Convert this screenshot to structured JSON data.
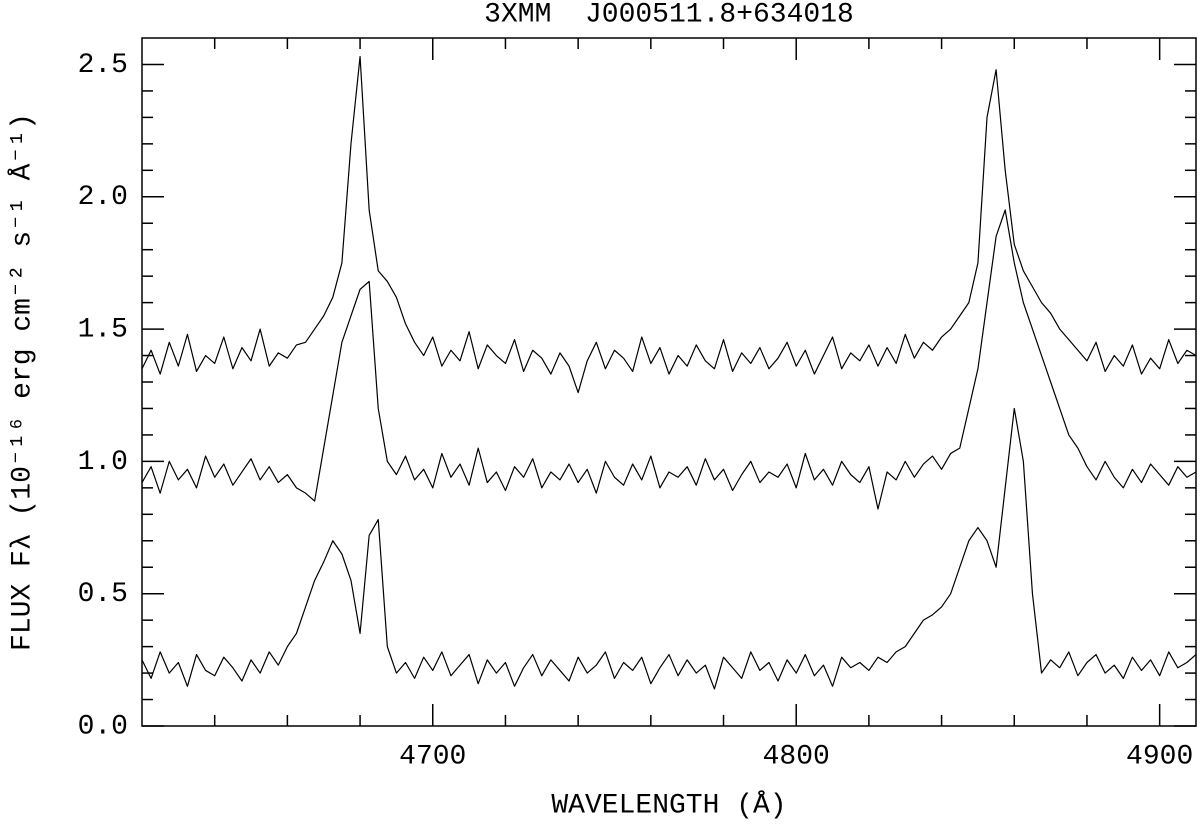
{
  "chart_data": {
    "type": "line",
    "title": "3XMM  J000511.8+634018",
    "xlabel": "WAVELENGTH (Å)",
    "ylabel": "FLUX Fλ (10⁻¹⁶ erg cm⁻² s⁻¹ Å⁻¹)",
    "xlim": [
      4620,
      4910
    ],
    "ylim": [
      0,
      2.6
    ],
    "xticks": [
      4700,
      4800,
      4900
    ],
    "yticks": [
      {
        "value": 0,
        "label": "0.0"
      },
      0.5,
      {
        "value": 1,
        "label": "1.0"
      },
      1.5,
      {
        "value": 2,
        "label": "2.0"
      },
      2.5
    ],
    "xminorticks": [
      4640,
      4660,
      4680,
      4720,
      4740,
      4760,
      4780,
      4820,
      4840,
      4860,
      4880
    ],
    "yminorticks": [
      0.1,
      0.2,
      0.3,
      0.4,
      0.6,
      0.7,
      0.8,
      0.9,
      1.1,
      1.2,
      1.3,
      1.4,
      1.6,
      1.7,
      1.8,
      1.9,
      2.1,
      2.2,
      2.3,
      2.4
    ],
    "x": [
      4620,
      4622.5,
      4625,
      4627.5,
      4630,
      4632.5,
      4635,
      4637.5,
      4640,
      4642.5,
      4645,
      4647.5,
      4650,
      4652.5,
      4655,
      4657.5,
      4660,
      4662.5,
      4665,
      4667.5,
      4670,
      4672.5,
      4675,
      4677.5,
      4680,
      4682.5,
      4685,
      4687.5,
      4690,
      4692.5,
      4695,
      4697.5,
      4700,
      4702.5,
      4705,
      4707.5,
      4710,
      4712.5,
      4715,
      4717.5,
      4720,
      4722.5,
      4725,
      4727.5,
      4730,
      4732.5,
      4735,
      4737.5,
      4740,
      4742.5,
      4745,
      4747.5,
      4750,
      4752.5,
      4755,
      4757.5,
      4760,
      4762.5,
      4765,
      4767.5,
      4770,
      4772.5,
      4775,
      4777.5,
      4780,
      4782.5,
      4785,
      4787.5,
      4790,
      4792.5,
      4795,
      4797.5,
      4800,
      4802.5,
      4805,
      4807.5,
      4810,
      4812.5,
      4815,
      4817.5,
      4820,
      4822.5,
      4825,
      4827.5,
      4830,
      4832.5,
      4835,
      4837.5,
      4840,
      4842.5,
      4845,
      4847.5,
      4850,
      4852.5,
      4855,
      4857.5,
      4860,
      4862.5,
      4865,
      4867.5,
      4870,
      4872.5,
      4875,
      4877.5,
      4880,
      4882.5,
      4885,
      4887.5,
      4890,
      4892.5,
      4895,
      4897.5,
      4900,
      4902.5,
      4905,
      4907.5,
      4910
    ],
    "series": [
      {
        "color": "#000000",
        "values": [
          1.35,
          1.42,
          1.33,
          1.45,
          1.36,
          1.48,
          1.34,
          1.4,
          1.37,
          1.47,
          1.35,
          1.43,
          1.38,
          1.5,
          1.36,
          1.41,
          1.39,
          1.44,
          1.45,
          1.5,
          1.55,
          1.62,
          1.75,
          2.2,
          2.53,
          1.95,
          1.72,
          1.68,
          1.62,
          1.52,
          1.45,
          1.4,
          1.47,
          1.36,
          1.42,
          1.38,
          1.49,
          1.35,
          1.44,
          1.4,
          1.37,
          1.46,
          1.34,
          1.42,
          1.39,
          1.33,
          1.41,
          1.36,
          1.26,
          1.38,
          1.45,
          1.35,
          1.42,
          1.39,
          1.34,
          1.47,
          1.37,
          1.43,
          1.33,
          1.4,
          1.36,
          1.44,
          1.38,
          1.35,
          1.46,
          1.34,
          1.41,
          1.37,
          1.43,
          1.35,
          1.39,
          1.45,
          1.36,
          1.42,
          1.33,
          1.4,
          1.47,
          1.35,
          1.41,
          1.38,
          1.44,
          1.36,
          1.43,
          1.37,
          1.48,
          1.39,
          1.45,
          1.42,
          1.47,
          1.5,
          1.55,
          1.6,
          1.75,
          2.3,
          2.48,
          2.1,
          1.82,
          1.72,
          1.66,
          1.6,
          1.56,
          1.5,
          1.46,
          1.42,
          1.38,
          1.45,
          1.34,
          1.4,
          1.36,
          1.44,
          1.33,
          1.39,
          1.35,
          1.46,
          1.37,
          1.42,
          1.4
        ]
      },
      {
        "color": "#000000",
        "values": [
          0.92,
          0.98,
          0.88,
          1.0,
          0.93,
          0.97,
          0.9,
          1.02,
          0.94,
          0.99,
          0.91,
          0.96,
          1.01,
          0.93,
          0.98,
          0.92,
          0.95,
          0.9,
          0.88,
          0.85,
          1.05,
          1.25,
          1.45,
          1.55,
          1.65,
          1.68,
          1.2,
          1.0,
          0.95,
          1.02,
          0.93,
          0.97,
          0.9,
          1.03,
          0.94,
          0.99,
          0.91,
          1.05,
          0.92,
          0.96,
          0.89,
          0.98,
          0.94,
          1.01,
          0.9,
          0.96,
          0.93,
          0.99,
          0.92,
          0.97,
          0.88,
          1.0,
          0.94,
          0.91,
          0.99,
          0.93,
          1.02,
          0.9,
          0.96,
          0.94,
          0.98,
          0.91,
          1.01,
          0.93,
          0.97,
          0.89,
          0.95,
          1.0,
          0.92,
          0.96,
          0.94,
          0.99,
          0.9,
          1.03,
          0.93,
          0.97,
          0.91,
          1.0,
          0.95,
          0.92,
          0.98,
          0.82,
          0.96,
          0.93,
          1.0,
          0.94,
          0.99,
          1.02,
          0.97,
          1.03,
          1.05,
          1.2,
          1.35,
          1.6,
          1.85,
          1.95,
          1.75,
          1.6,
          1.5,
          1.4,
          1.3,
          1.2,
          1.1,
          1.05,
          0.98,
          0.93,
          1.0,
          0.94,
          0.9,
          0.97,
          0.92,
          0.99,
          0.95,
          0.91,
          0.98,
          0.94,
          0.96
        ]
      },
      {
        "color": "#000000",
        "values": [
          0.25,
          0.18,
          0.28,
          0.2,
          0.24,
          0.15,
          0.27,
          0.21,
          0.19,
          0.26,
          0.22,
          0.17,
          0.25,
          0.2,
          0.28,
          0.23,
          0.3,
          0.35,
          0.45,
          0.55,
          0.62,
          0.7,
          0.65,
          0.55,
          0.35,
          0.72,
          0.78,
          0.3,
          0.2,
          0.24,
          0.18,
          0.26,
          0.21,
          0.28,
          0.19,
          0.23,
          0.27,
          0.16,
          0.25,
          0.2,
          0.24,
          0.15,
          0.22,
          0.27,
          0.19,
          0.25,
          0.21,
          0.17,
          0.26,
          0.2,
          0.23,
          0.28,
          0.18,
          0.24,
          0.21,
          0.26,
          0.16,
          0.22,
          0.27,
          0.19,
          0.25,
          0.2,
          0.23,
          0.14,
          0.26,
          0.22,
          0.18,
          0.28,
          0.21,
          0.24,
          0.17,
          0.25,
          0.2,
          0.27,
          0.19,
          0.23,
          0.15,
          0.26,
          0.22,
          0.24,
          0.21,
          0.26,
          0.24,
          0.28,
          0.3,
          0.35,
          0.4,
          0.42,
          0.45,
          0.5,
          0.6,
          0.7,
          0.75,
          0.7,
          0.6,
          0.9,
          1.2,
          1.0,
          0.5,
          0.2,
          0.25,
          0.22,
          0.28,
          0.19,
          0.24,
          0.27,
          0.2,
          0.23,
          0.18,
          0.26,
          0.21,
          0.25,
          0.19,
          0.28,
          0.22,
          0.24,
          0.27
        ]
      }
    ]
  }
}
